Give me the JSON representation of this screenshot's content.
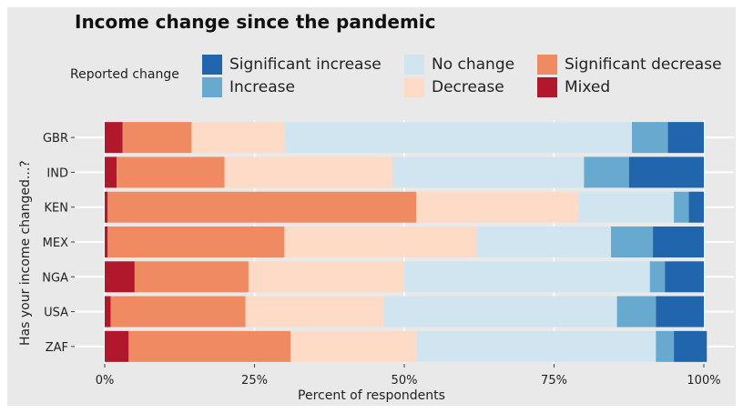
{
  "chart_data": {
    "type": "bar",
    "orientation": "horizontal",
    "stacked": true,
    "title": "Income change since the pandemic",
    "xlabel": "Percent of respondents",
    "ylabel": "Has your income changed...?",
    "legend_title": "Reported change",
    "legend_position": "top",
    "xlim": [
      0,
      100
    ],
    "xticks": [
      "0%",
      "25%",
      "50%",
      "75%",
      "100%"
    ],
    "grid": true,
    "categories": [
      "GBR",
      "IND",
      "KEN",
      "MEX",
      "NGA",
      "USA",
      "ZAF"
    ],
    "series": [
      {
        "name": "Mixed",
        "color": "#b2182b",
        "values": [
          3,
          2,
          0.5,
          0.5,
          5,
          1,
          4
        ]
      },
      {
        "name": "Significant decrease",
        "color": "#ef8a62",
        "values": [
          11.5,
          18,
          51.5,
          29.5,
          19,
          22.5,
          27
        ]
      },
      {
        "name": "Decrease",
        "color": "#fddbc7",
        "values": [
          15.5,
          28,
          27,
          32,
          26,
          23,
          21
        ]
      },
      {
        "name": "No change",
        "color": "#d1e5f0",
        "values": [
          58,
          32,
          16,
          22.5,
          41,
          39,
          40
        ]
      },
      {
        "name": "Increase",
        "color": "#67a9cf",
        "values": [
          6,
          7.5,
          2.5,
          7,
          2.5,
          6.5,
          3
        ]
      },
      {
        "name": "Significant increase",
        "color": "#2166ac",
        "values": [
          6,
          12.5,
          2.5,
          8.5,
          6.5,
          8,
          5.5
        ]
      }
    ]
  },
  "legend_items": [
    {
      "label": "Significant increase",
      "color": "#2166ac"
    },
    {
      "label": "Increase",
      "color": "#67a9cf"
    },
    {
      "label": "No change",
      "color": "#d1e5f0"
    },
    {
      "label": "Decrease",
      "color": "#fddbc7"
    },
    {
      "label": "Significant decrease",
      "color": "#ef8a62"
    },
    {
      "label": "Mixed",
      "color": "#b2182b"
    }
  ]
}
